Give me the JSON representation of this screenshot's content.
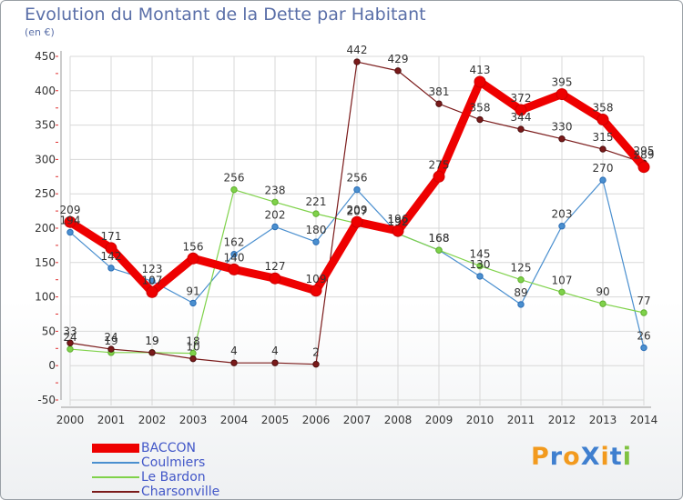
{
  "title": "Evolution du Montant de la Dette par Habitant",
  "subtitle": "(en €)",
  "colors": {
    "BACCON": "#ee0000",
    "Coulmiers": "#4a8fcf",
    "Le Bardon": "#7fd24a",
    "Charsonville": "#7a1a1a",
    "title": "#5a6fa8",
    "legend_text": "#4257c8",
    "grid": "#d8d8d8"
  },
  "logo": {
    "text": "ProXiti",
    "colors": [
      "#f29a1e",
      "#3f7fcf",
      "#f29a1e",
      "#3f7fcf",
      "#f29a1e",
      "#3f7fcf",
      "#7fc241"
    ]
  },
  "chart_data": {
    "type": "line",
    "title": "Evolution du Montant de la Dette par Habitant",
    "ylabel": "(en €)",
    "x": [
      "2000",
      "2001",
      "2002",
      "2003",
      "2004",
      "2005",
      "2006",
      "2007",
      "2008",
      "2009",
      "2010",
      "2011",
      "2012",
      "2013",
      "2014"
    ],
    "ylim": [
      -50,
      450
    ],
    "yticks": [
      -50,
      0,
      50,
      100,
      150,
      200,
      250,
      300,
      350,
      400,
      450
    ],
    "grid": true,
    "legend_position": "bottom-left",
    "series": [
      {
        "name": "BACCON",
        "values": [
          209,
          171,
          107,
          156,
          140,
          127,
          109,
          209,
          196,
          275,
          413,
          372,
          395,
          358,
          289
        ],
        "labels": [
          "209",
          "171",
          "107",
          "156",
          "140",
          "127",
          "109",
          "209",
          "196",
          "275",
          "413",
          "372",
          "395",
          "358",
          "289"
        ]
      },
      {
        "name": "Coulmiers",
        "values": [
          194,
          142,
          123,
          91,
          162,
          202,
          180,
          256,
          192,
          168,
          130,
          89,
          203,
          270,
          26
        ],
        "labels": [
          "194",
          "142",
          "123",
          "91",
          "162",
          "202",
          "180",
          "256",
          "192",
          "168",
          "130",
          "89",
          "203",
          "270",
          "26"
        ]
      },
      {
        "name": "Le Bardon",
        "values": [
          24,
          19,
          19,
          18,
          256,
          238,
          221,
          207,
          192,
          168,
          145,
          125,
          107,
          90,
          77
        ],
        "labels": [
          "24",
          "19",
          "19",
          "18",
          "256",
          "238",
          "221",
          "207",
          "192",
          "168",
          "145",
          "125",
          "107",
          "90",
          "77"
        ]
      },
      {
        "name": "Charsonville",
        "values": [
          33,
          24,
          19,
          10,
          4,
          4,
          2,
          442,
          429,
          381,
          358,
          344,
          330,
          315,
          295
        ],
        "labels": [
          "33",
          "24",
          "19",
          "10",
          "4",
          "4",
          "2",
          "442",
          "429",
          "381",
          "358",
          "344",
          "330",
          "315",
          "295"
        ]
      }
    ]
  }
}
